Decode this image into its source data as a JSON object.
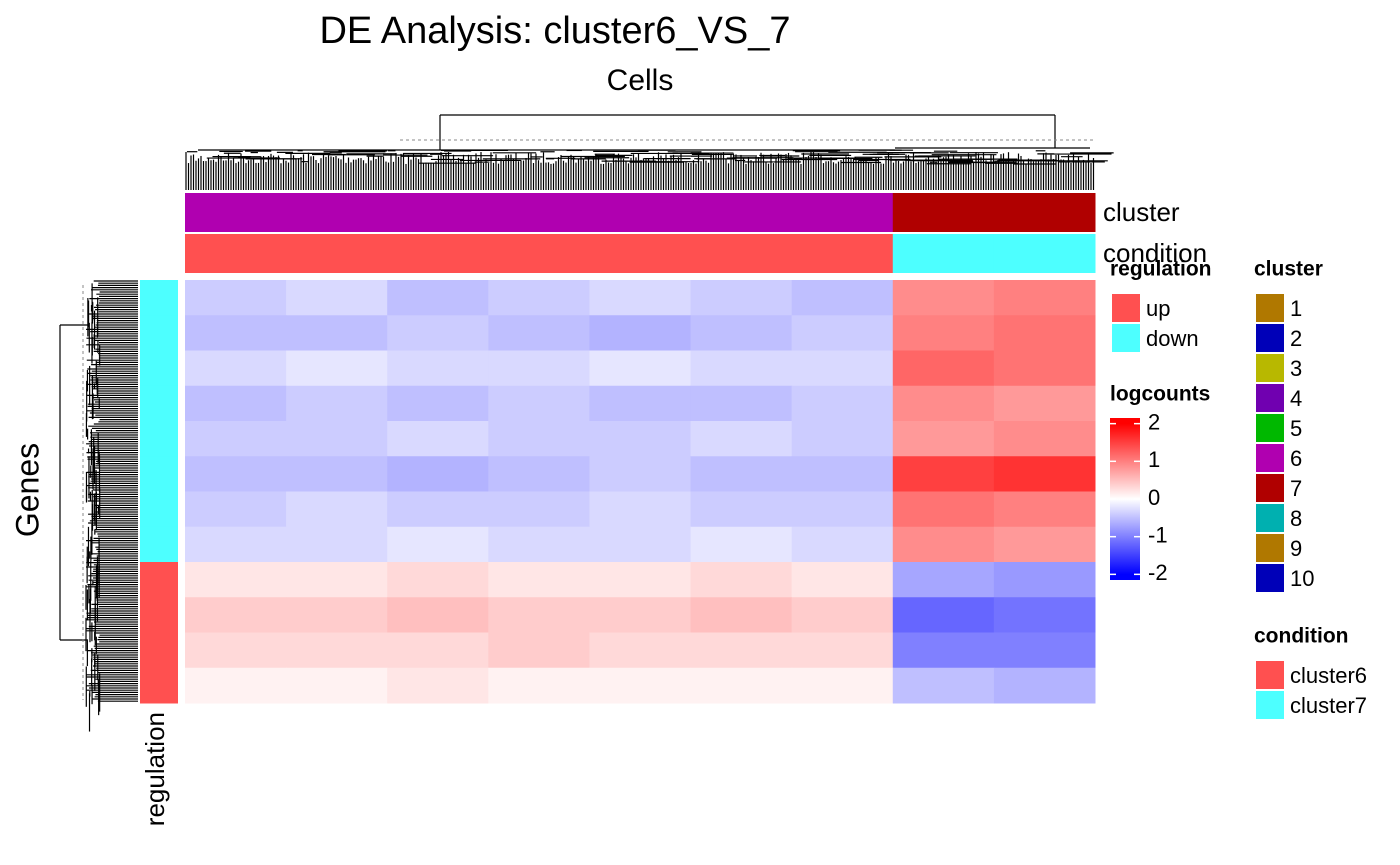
{
  "chart_data": {
    "type": "heatmap",
    "title": "DE Analysis: cluster6_VS_7",
    "column_title": "Cells",
    "row_title": "Genes",
    "values": [
      [
        -0.4,
        -0.3,
        -0.5,
        -0.4,
        -0.3,
        -0.4,
        -0.5,
        0.9,
        1.0
      ],
      [
        -0.5,
        -0.5,
        -0.4,
        -0.5,
        -0.6,
        -0.5,
        -0.4,
        1.0,
        1.1
      ],
      [
        -0.3,
        -0.2,
        -0.3,
        -0.3,
        -0.2,
        -0.3,
        -0.3,
        1.2,
        1.1
      ],
      [
        -0.5,
        -0.4,
        -0.5,
        -0.4,
        -0.5,
        -0.5,
        -0.4,
        0.9,
        0.8
      ],
      [
        -0.4,
        -0.4,
        -0.3,
        -0.4,
        -0.4,
        -0.3,
        -0.4,
        0.8,
        0.9
      ],
      [
        -0.5,
        -0.5,
        -0.6,
        -0.5,
        -0.4,
        -0.5,
        -0.5,
        1.5,
        1.6
      ],
      [
        -0.4,
        -0.3,
        -0.4,
        -0.4,
        -0.3,
        -0.4,
        -0.4,
        1.1,
        1.0
      ],
      [
        -0.3,
        -0.3,
        -0.2,
        -0.3,
        -0.3,
        -0.2,
        -0.3,
        0.9,
        0.8
      ],
      [
        0.2,
        0.2,
        0.3,
        0.2,
        0.2,
        0.3,
        0.2,
        -0.7,
        -0.8
      ],
      [
        0.4,
        0.4,
        0.5,
        0.4,
        0.4,
        0.5,
        0.4,
        -1.2,
        -1.1
      ],
      [
        0.3,
        0.3,
        0.3,
        0.4,
        0.3,
        0.3,
        0.3,
        -1.0,
        -1.0
      ],
      [
        0.1,
        0.1,
        0.2,
        0.1,
        0.1,
        0.1,
        0.1,
        -0.5,
        -0.6
      ]
    ],
    "column_annotations": [
      {
        "name": "cluster",
        "values": [
          "6",
          "6",
          "6",
          "6",
          "6",
          "6",
          "6",
          "7",
          "7"
        ]
      },
      {
        "name": "condition",
        "values": [
          "cluster6",
          "cluster6",
          "cluster6",
          "cluster6",
          "cluster6",
          "cluster6",
          "cluster6",
          "cluster7",
          "cluster7"
        ]
      }
    ],
    "row_annotation": {
      "name": "regulation",
      "values": [
        "down",
        "down",
        "down",
        "down",
        "down",
        "down",
        "down",
        "down",
        "up",
        "up",
        "up",
        "up"
      ]
    },
    "color_breaks": [
      -2,
      0,
      2
    ],
    "colors": [
      "#0000ff",
      "#ffffff",
      "#ff0000"
    ],
    "legends": [
      {
        "title": "regulation",
        "labels": [
          "up",
          "down"
        ],
        "colors": [
          "#ff5050",
          "#4dffff"
        ]
      },
      {
        "title": "logcounts",
        "lim": [
          -2.15,
          2.15
        ],
        "ticks": [
          2,
          1,
          0,
          -1,
          -2
        ]
      },
      {
        "title": "cluster",
        "labels": [
          "1",
          "2",
          "3",
          "4",
          "5",
          "6",
          "7",
          "8",
          "9",
          "10"
        ],
        "colors": [
          "#b07800",
          "#0000b8",
          "#b8b800",
          "#7000b0",
          "#00b800",
          "#b000b0",
          "#b00000",
          "#00b0b0",
          "#b07800",
          "#0000b8"
        ]
      },
      {
        "title": "condition",
        "labels": [
          "cluster6",
          "cluster7"
        ],
        "colors": [
          "#ff5050",
          "#4dffff"
        ]
      }
    ]
  }
}
